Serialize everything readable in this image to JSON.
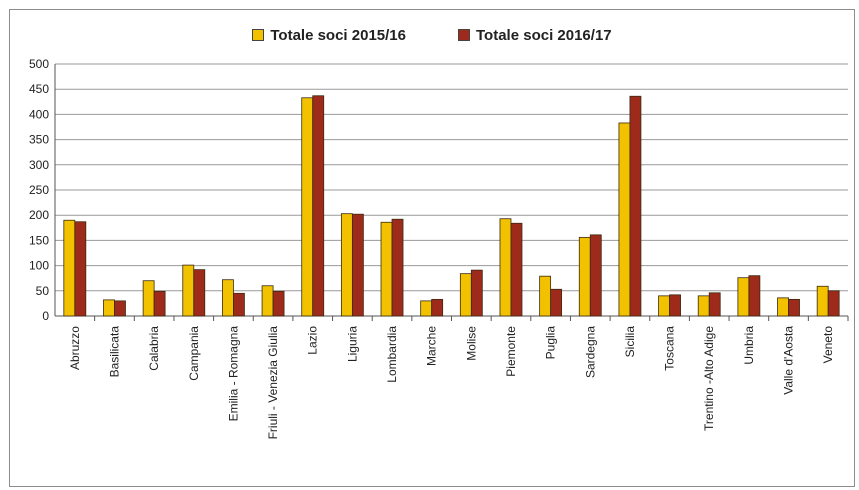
{
  "chart_data": {
    "type": "bar",
    "title": "",
    "xlabel": "",
    "ylabel": "",
    "ylim": [
      0,
      500
    ],
    "yticks": [
      0,
      50,
      100,
      150,
      200,
      250,
      300,
      350,
      400,
      450,
      500
    ],
    "grid": true,
    "legend_position": "top-center",
    "categories": [
      "Abruzzo",
      "Basilicata",
      "Calabria",
      "Campania",
      "Emilia - Romagna",
      "Friuli - Venezia Giulia",
      "Lazio",
      "Liguria",
      "Lombardia",
      "Marche",
      "Molise",
      "Piemonte",
      "Puglia",
      "Sardegna",
      "Sicilia",
      "Toscana",
      "Trentino -Alto Adige",
      "Umbria",
      "Valle d'Aosta",
      "Veneto"
    ],
    "series": [
      {
        "name": "Totale soci 2015/16",
        "color": "#f2c200",
        "values": [
          190,
          32,
          70,
          101,
          72,
          60,
          433,
          203,
          186,
          30,
          84,
          193,
          79,
          156,
          383,
          40,
          40,
          76,
          36,
          59
        ]
      },
      {
        "name": "Totale soci 2016/17",
        "color": "#9e2a1b",
        "values": [
          187,
          30,
          49,
          92,
          45,
          49,
          437,
          202,
          192,
          33,
          91,
          184,
          53,
          161,
          436,
          42,
          46,
          80,
          33,
          50
        ]
      }
    ]
  }
}
